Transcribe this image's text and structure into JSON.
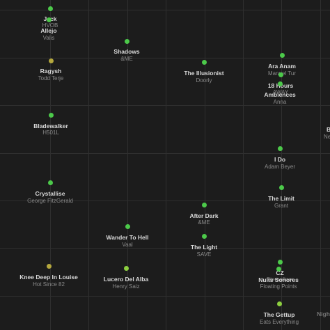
{
  "colors": {
    "background": "#1c1c1c",
    "grid": "#2f2f2f",
    "title_text": "#d9d9d9",
    "artist_text": "#8a8a8a",
    "dot_green": "#4cc94a",
    "dot_lime": "#8ccf3f",
    "dot_olive": "#b5a83e"
  },
  "tracks": [
    {
      "title": "Jack",
      "artist": "HVOB",
      "dot_color": "#4cc94a"
    },
    {
      "title": "Allejo",
      "artist": "Valis",
      "dot_color": "#4cc94a"
    },
    {
      "title": "Shadows",
      "artist": "&ME",
      "dot_color": "#4cc94a"
    },
    {
      "title": "Ragysh",
      "artist": "Todd Terje",
      "dot_color": "#b5a83e"
    },
    {
      "title": "The Illusionist",
      "artist": "Doorly",
      "dot_color": "#4cc94a"
    },
    {
      "title": "Ara Anam",
      "artist": "Manuel Tur",
      "dot_color": "#4cc94a"
    },
    {
      "title": "18 Hours",
      "artist": "AWAY",
      "dot_color": "#4cc94a"
    },
    {
      "title": "Ambiences",
      "artist": "Anna",
      "dot_color": "#4cc94a"
    },
    {
      "title": "Bladewalker",
      "artist": "H501L",
      "dot_color": "#4cc94a"
    },
    {
      "title": "B",
      "artist": "Ne",
      "dot_color": ""
    },
    {
      "title": "I Do",
      "artist": "Adam Beyer",
      "dot_color": "#4cc94a"
    },
    {
      "title": "Crystallise",
      "artist": "George FitzGerald",
      "dot_color": "#4cc94a"
    },
    {
      "title": "The Limit",
      "artist": "Grant",
      "dot_color": "#4cc94a"
    },
    {
      "title": "After Dark",
      "artist": "&ME",
      "dot_color": "#4cc94a"
    },
    {
      "title": "Wander To Hell",
      "artist": "Vaal",
      "dot_color": "#4cc94a"
    },
    {
      "title": "The Light",
      "artist": "SAVE",
      "dot_color": "#4cc94a"
    },
    {
      "title": "Knee Deep In Louise",
      "artist": "Hot Since 82",
      "dot_color": "#b5a83e"
    },
    {
      "title": "Lucero Del Alba",
      "artist": "Henry Saiz",
      "dot_color": "#8ccf3f"
    },
    {
      "title": "CZ",
      "artist": "Stereoliner",
      "dot_color": "#4cc94a"
    },
    {
      "title": "Nuits Sonores",
      "artist": "Floating Points",
      "dot_color": "#4cc94a"
    },
    {
      "title": "The Gettup",
      "artist": "Eats Everything",
      "dot_color": "#8ccf3f"
    },
    {
      "title": "Night",
      "artist": "",
      "dot_color": ""
    }
  ]
}
